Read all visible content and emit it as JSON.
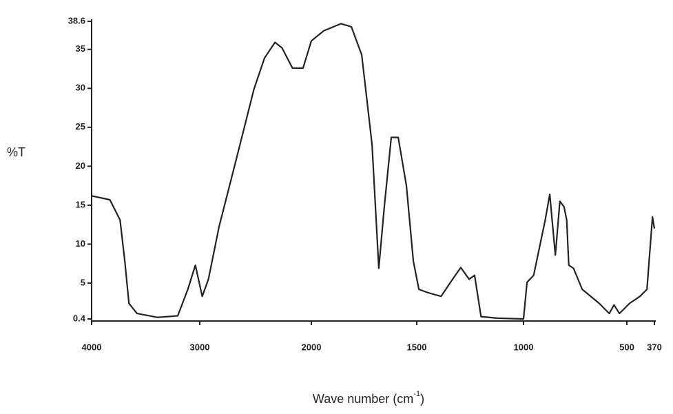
{
  "chart_data": {
    "type": "line",
    "ylabel": "%T",
    "xlabel": {
      "text": "Wave number (cm",
      "sup": "-1",
      "end": ")"
    },
    "xlim": [
      4000,
      370
    ],
    "xticks": [
      4000,
      3000,
      2000,
      1500,
      1000,
      500,
      370
    ],
    "ylim": [
      0.4,
      38.6
    ],
    "yticks": [
      0.4,
      5,
      10,
      15,
      20,
      25,
      30,
      35,
      38.6
    ],
    "color": "#222222",
    "x": [
      4000,
      3831,
      3737,
      3693,
      3655,
      3580,
      3392,
      3204,
      3110,
      3041,
      2978,
      2922,
      2828,
      2671,
      2514,
      2420,
      2326,
      2263,
      2169,
      2075,
      2000,
      1941,
      1859,
      1810,
      1761,
      1712,
      1680,
      1654,
      1621,
      1588,
      1549,
      1516,
      1490,
      1451,
      1386,
      1337,
      1294,
      1255,
      1229,
      1199,
      1124,
      1000,
      983,
      951,
      895,
      873,
      846,
      824,
      804,
      791,
      781,
      758,
      716,
      634,
      585,
      562,
      536,
      487,
      438,
      405,
      379,
      370
    ],
    "values": [
      16.2,
      15.7,
      13.1,
      7.8,
      2.4,
      1.1,
      0.6,
      0.8,
      4.2,
      7.3,
      3.3,
      5.5,
      12.2,
      21.0,
      29.9,
      33.9,
      35.9,
      35.2,
      32.6,
      32.6,
      36.1,
      37.4,
      38.3,
      37.9,
      34.3,
      22.8,
      6.9,
      14.8,
      23.7,
      23.7,
      17.5,
      7.8,
      4.2,
      3.8,
      3.3,
      5.3,
      7.0,
      5.5,
      6.0,
      0.7,
      0.5,
      0.4,
      5.1,
      6.0,
      13.1,
      16.4,
      8.6,
      15.5,
      14.8,
      13.1,
      7.3,
      6.9,
      4.2,
      2.4,
      1.1,
      2.2,
      1.1,
      2.4,
      3.3,
      4.2,
      13.5,
      12.0
    ]
  }
}
